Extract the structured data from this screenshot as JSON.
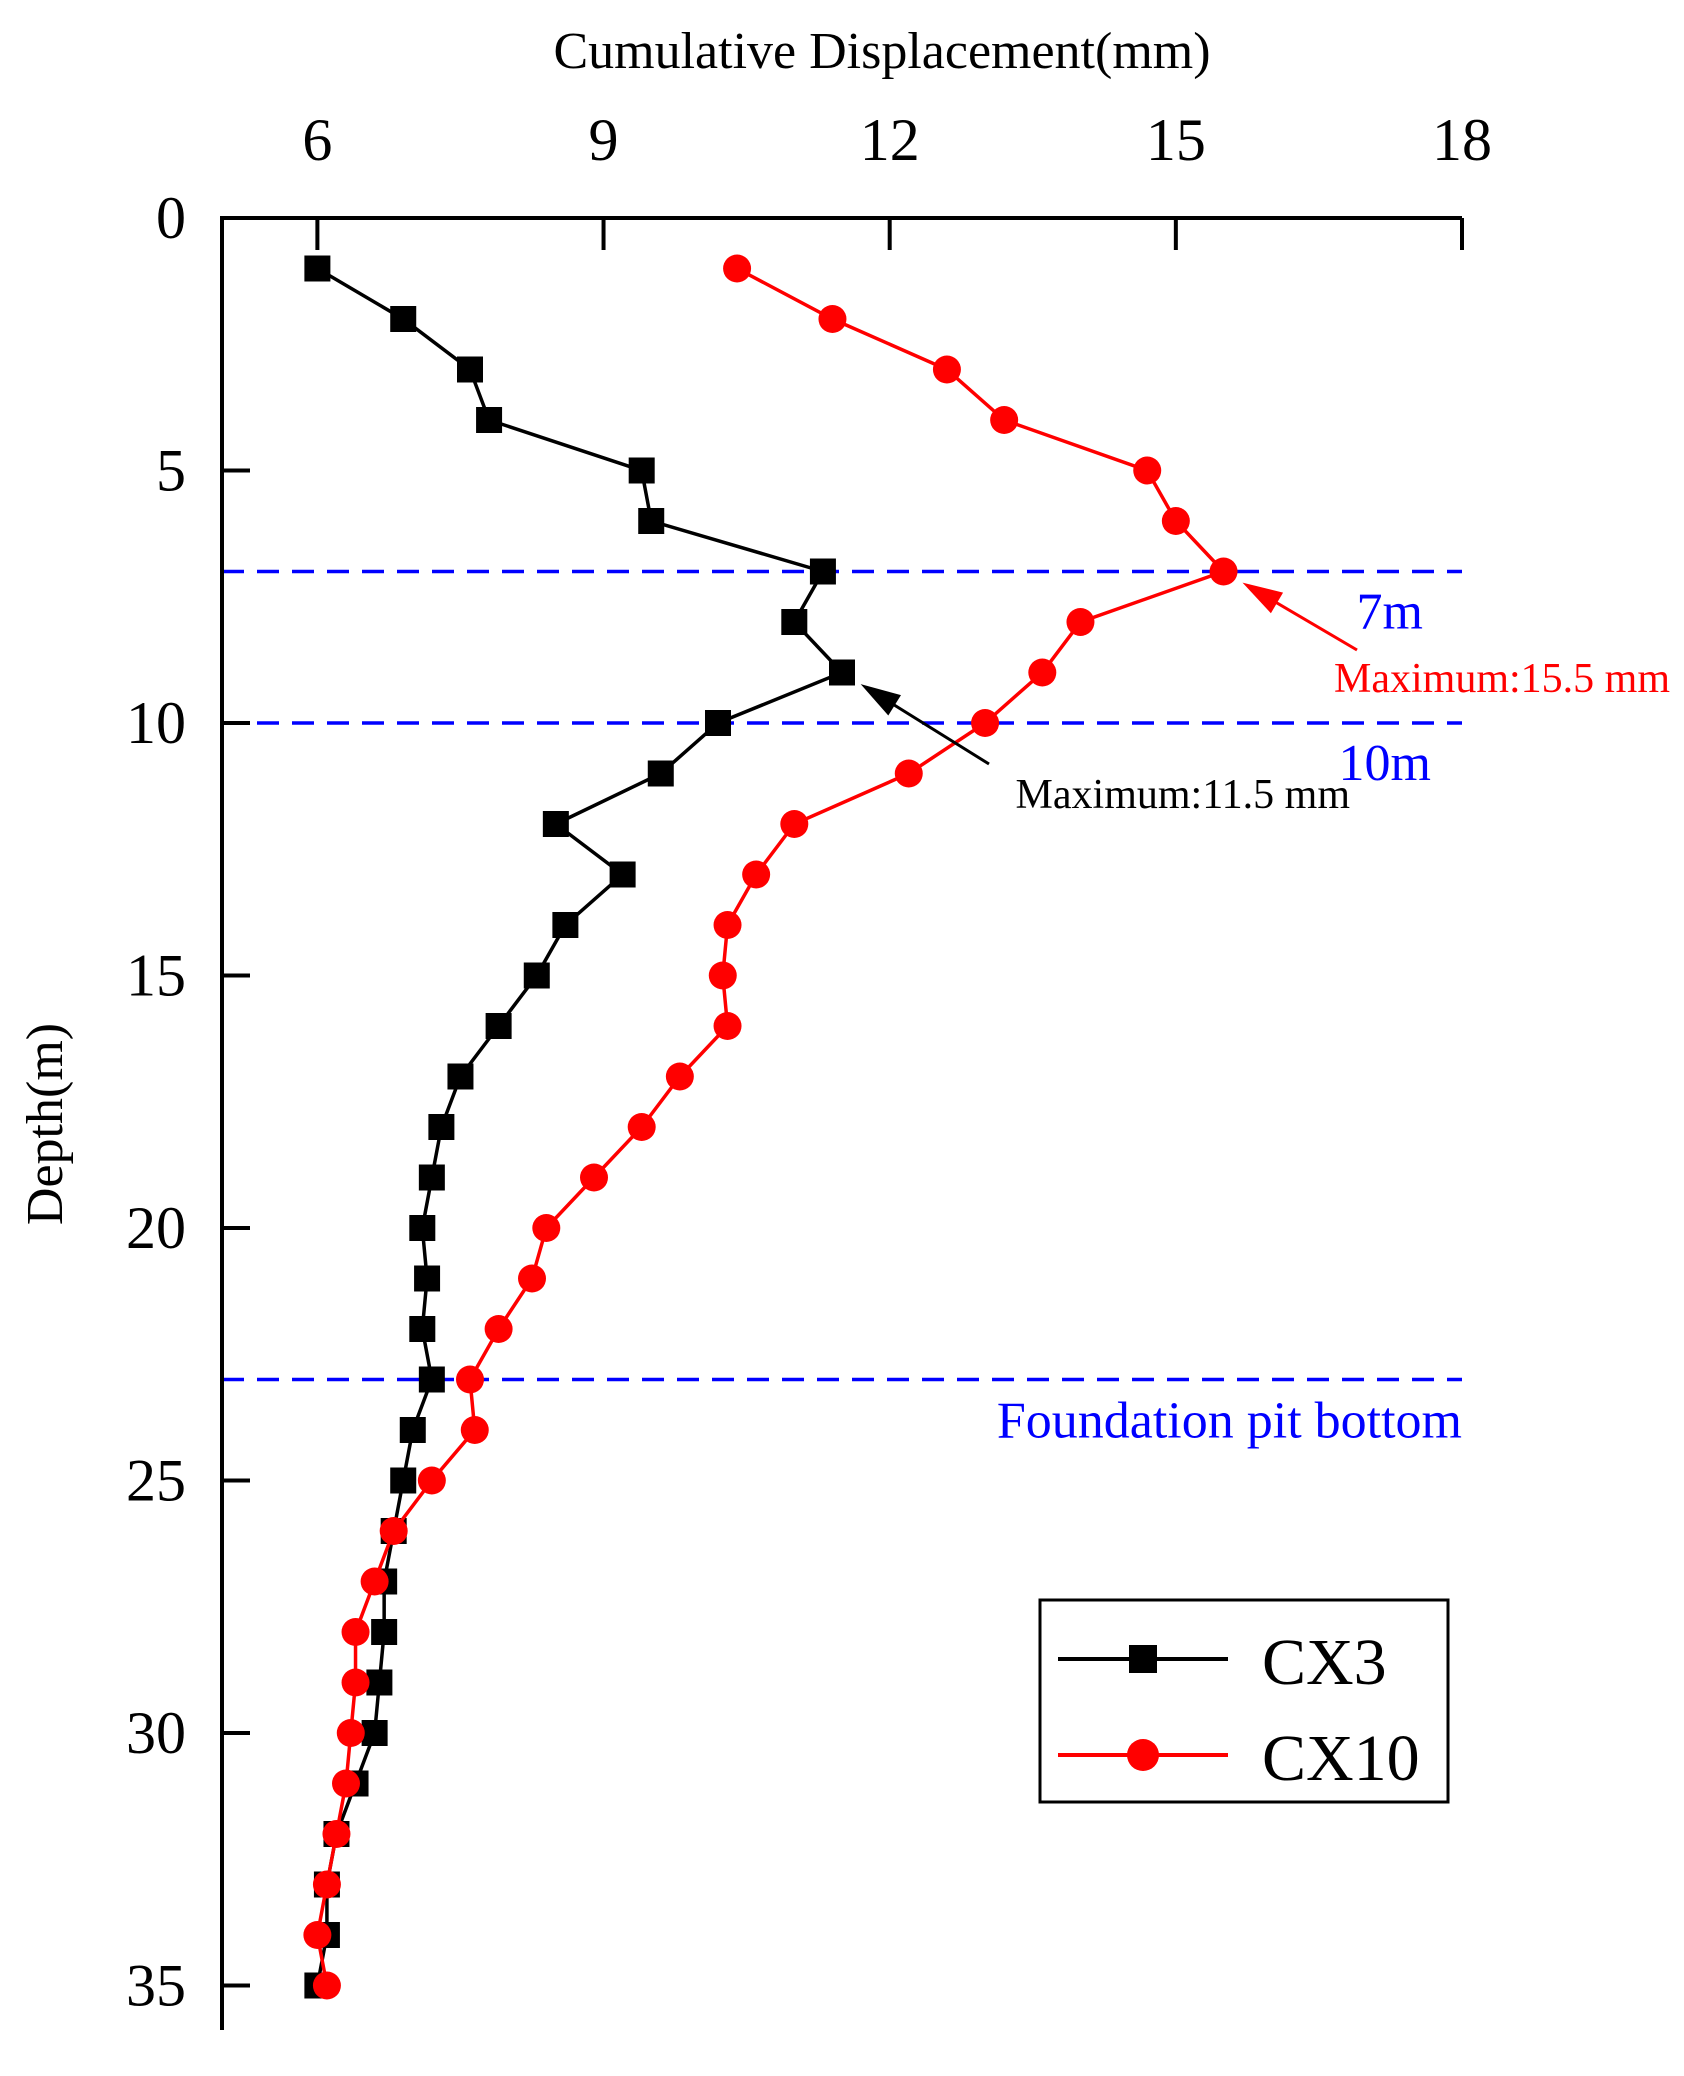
{
  "chart_data": {
    "type": "line",
    "xlabel": "Cumulative Displacement(mm)",
    "ylabel": "Depth(m)",
    "xlim": [
      5,
      18
    ],
    "ylim": [
      0,
      36
    ],
    "x_axis_position": "top",
    "y_axis_inverted": true,
    "x_ticks": [
      6,
      9,
      12,
      15,
      18
    ],
    "y_ticks": [
      0,
      5,
      10,
      15,
      20,
      25,
      30,
      35
    ],
    "legend_position": "bottom-right",
    "series": [
      {
        "name": "CX3",
        "color": "#000000",
        "marker": "square",
        "points": [
          [
            6.0,
            1
          ],
          [
            6.9,
            2
          ],
          [
            7.6,
            3
          ],
          [
            7.8,
            4
          ],
          [
            9.4,
            5
          ],
          [
            9.5,
            6
          ],
          [
            11.3,
            7
          ],
          [
            11.0,
            8
          ],
          [
            11.5,
            9
          ],
          [
            10.2,
            10
          ],
          [
            9.6,
            11
          ],
          [
            8.5,
            12
          ],
          [
            9.2,
            13
          ],
          [
            8.6,
            14
          ],
          [
            8.3,
            15
          ],
          [
            7.9,
            16
          ],
          [
            7.5,
            17
          ],
          [
            7.3,
            18
          ],
          [
            7.2,
            19
          ],
          [
            7.1,
            20
          ],
          [
            7.15,
            21
          ],
          [
            7.1,
            22
          ],
          [
            7.2,
            23
          ],
          [
            7.0,
            24
          ],
          [
            6.9,
            25
          ],
          [
            6.8,
            26
          ],
          [
            6.7,
            27
          ],
          [
            6.7,
            28
          ],
          [
            6.65,
            29
          ],
          [
            6.6,
            30
          ],
          [
            6.4,
            31
          ],
          [
            6.2,
            32
          ],
          [
            6.1,
            33
          ],
          [
            6.1,
            34
          ],
          [
            6.0,
            35
          ]
        ]
      },
      {
        "name": "CX10",
        "color": "#ff0000",
        "marker": "circle",
        "points": [
          [
            10.4,
            1
          ],
          [
            11.4,
            2
          ],
          [
            12.6,
            3
          ],
          [
            13.2,
            4
          ],
          [
            14.7,
            5
          ],
          [
            15.0,
            6
          ],
          [
            15.5,
            7
          ],
          [
            14.0,
            8
          ],
          [
            13.6,
            9
          ],
          [
            13.0,
            10
          ],
          [
            12.2,
            11
          ],
          [
            11.0,
            12
          ],
          [
            10.6,
            13
          ],
          [
            10.3,
            14
          ],
          [
            10.25,
            15
          ],
          [
            10.3,
            16
          ],
          [
            9.8,
            17
          ],
          [
            9.4,
            18
          ],
          [
            8.9,
            19
          ],
          [
            8.4,
            20
          ],
          [
            8.25,
            21
          ],
          [
            7.9,
            22
          ],
          [
            7.6,
            23
          ],
          [
            7.65,
            24
          ],
          [
            7.2,
            25
          ],
          [
            6.8,
            26
          ],
          [
            6.6,
            27
          ],
          [
            6.4,
            28
          ],
          [
            6.4,
            29
          ],
          [
            6.35,
            30
          ],
          [
            6.3,
            31
          ],
          [
            6.2,
            32
          ],
          [
            6.1,
            33
          ],
          [
            6.0,
            34
          ],
          [
            6.1,
            35
          ]
        ]
      }
    ],
    "reference_lines": [
      {
        "depth": 7,
        "label": "7m",
        "color": "#0000ff"
      },
      {
        "depth": 10,
        "label": "10m",
        "color": "#0000ff"
      },
      {
        "depth": 23,
        "label": "Foundation pit bottom",
        "color": "#0000ff"
      }
    ],
    "annotations": [
      {
        "text": "Maximum:15.5 mm",
        "target": [
          15.5,
          7
        ],
        "color": "#ff0000"
      },
      {
        "text": "Maximum:11.5 mm",
        "target": [
          11.5,
          9
        ],
        "color": "#000000"
      }
    ]
  }
}
